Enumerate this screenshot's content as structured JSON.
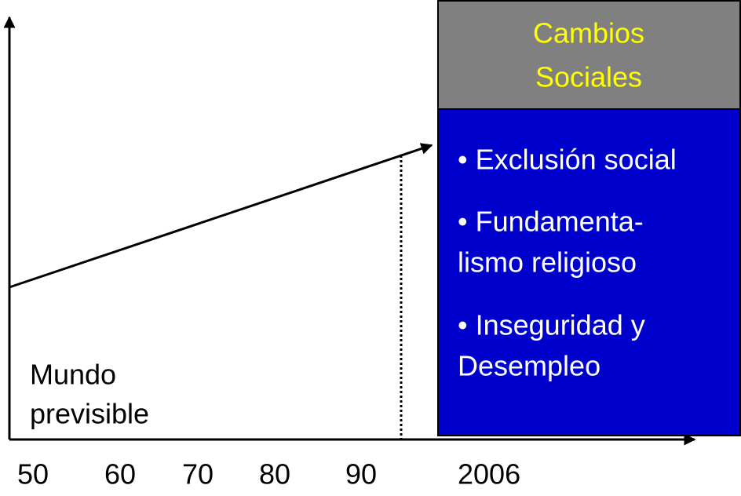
{
  "header": {
    "title_lines": [
      "Cambios",
      "Sociales"
    ]
  },
  "bullets": [
    [
      "• Exclusión social"
    ],
    [
      "• Fundamenta-",
      "lismo religioso"
    ],
    [
      "• Inseguridad y",
      "Desempleo"
    ]
  ],
  "left_label": [
    "Mundo",
    "previsible"
  ],
  "x_labels": [
    "50",
    "60",
    "70",
    "80",
    "90",
    "2006"
  ]
}
